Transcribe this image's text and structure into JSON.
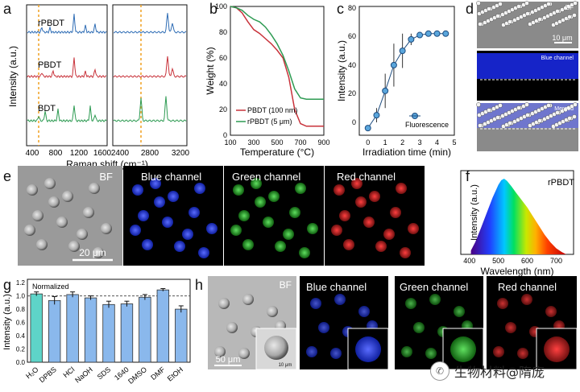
{
  "panel_letters": {
    "a": "a",
    "b": "b",
    "c": "c",
    "d": "d",
    "e": "e",
    "f": "f",
    "g": "g",
    "h": "h"
  },
  "panel_a": {
    "ylabel": "Intensity (a.u.)",
    "xlabel": "Raman shift (cm⁻¹)",
    "left_ticks": [
      "400",
      "800",
      "1200",
      "1600"
    ],
    "right_ticks": [
      "2400",
      "2800",
      "3200"
    ],
    "labels": [
      "rPBDT",
      "PBDT",
      "BDT"
    ],
    "colors": {
      "rPBDT": "#2f6db5",
      "PBDT": "#c8323a",
      "BDT": "#2e9b53",
      "marker": "#f0a020"
    }
  },
  "chart_data": [
    {
      "type": "line",
      "panel": "b",
      "ylabel": "Weight (%)",
      "xlabel": "Temperature (°C)",
      "xlim": [
        100,
        900
      ],
      "ylim": [
        0,
        100
      ],
      "x_ticks": [
        "100",
        "200",
        "300",
        "400",
        "500",
        "600",
        "700",
        "800",
        "900"
      ],
      "y_ticks": [
        "0",
        "20",
        "40",
        "60",
        "80",
        "100"
      ],
      "series": [
        {
          "name": "PBDT (100 nm)",
          "color": "#c8323a",
          "x": [
            100,
            150,
            200,
            250,
            300,
            350,
            400,
            450,
            500,
            550,
            600,
            650,
            700,
            750,
            800,
            850,
            900
          ],
          "y": [
            100,
            99,
            95,
            88,
            82,
            79,
            75,
            71,
            66,
            60,
            45,
            20,
            9,
            7,
            7,
            7,
            7
          ]
        },
        {
          "name": "rPBDT (5 μm)",
          "color": "#2e9b53",
          "x": [
            100,
            150,
            200,
            250,
            300,
            350,
            400,
            450,
            500,
            550,
            600,
            650,
            700,
            750,
            800,
            850,
            900
          ],
          "y": [
            100,
            99,
            97,
            93,
            90,
            88,
            84,
            78,
            71,
            62,
            50,
            36,
            29,
            28,
            28,
            28,
            28
          ]
        }
      ]
    },
    {
      "type": "scatter",
      "panel": "c",
      "ylabel": "Intensity (a.u.)",
      "xlabel": "Irradiation time (min)",
      "xlim": [
        -0.5,
        5
      ],
      "ylim": [
        -5,
        85
      ],
      "x_ticks": [
        "0",
        "1",
        "2",
        "3",
        "4",
        "5"
      ],
      "y_ticks": [
        "0",
        "20",
        "40",
        "60",
        "80"
      ],
      "series": [
        {
          "name": "Fluorescence",
          "color": "#5aa6dc",
          "x": [
            0,
            0.5,
            1,
            1.5,
            2,
            2.5,
            3,
            3.5,
            4,
            4.5
          ],
          "y": [
            0,
            9,
            26,
            44,
            54,
            62,
            65,
            66,
            66,
            66
          ],
          "err": [
            1,
            5,
            12,
            15,
            12,
            4,
            2,
            1,
            1,
            1
          ]
        }
      ]
    },
    {
      "type": "area",
      "panel": "f",
      "title": "rPBDT",
      "ylabel": "Intensity (a.u.)",
      "xlabel": "Wavelength (nm)",
      "xlim": [
        370,
        760
      ],
      "x_ticks": [
        "400",
        "500",
        "600",
        "700"
      ],
      "x": [
        405,
        420,
        440,
        460,
        480,
        500,
        510,
        520,
        530,
        545,
        560,
        580,
        600,
        620,
        640,
        660,
        680,
        700,
        720,
        735
      ],
      "y": [
        0.05,
        0.16,
        0.35,
        0.55,
        0.75,
        0.92,
        0.98,
        1.0,
        0.97,
        0.9,
        0.82,
        0.72,
        0.62,
        0.5,
        0.38,
        0.26,
        0.16,
        0.08,
        0.03,
        0.0
      ]
    },
    {
      "type": "bar",
      "panel": "g",
      "ylabel": "Intensity (a.u.)",
      "annotation": "Normalized",
      "ylim": [
        0,
        1.25
      ],
      "y_ticks": [
        "0.0",
        "0.2",
        "0.4",
        "0.6",
        "0.8",
        "1.0",
        "1.2"
      ],
      "categories": [
        "H₂O",
        "DPBS",
        "HCl",
        "NaOH",
        "SDS",
        "1640",
        "DMSO",
        "DMF",
        "EtOH"
      ],
      "values": [
        1.03,
        0.93,
        1.02,
        0.97,
        0.87,
        0.88,
        0.98,
        1.09,
        0.8
      ],
      "errors": [
        0.03,
        0.06,
        0.04,
        0.03,
        0.05,
        0.04,
        0.04,
        0.02,
        0.05
      ],
      "colors": {
        "first": "#5ed4c8",
        "rest": "#8ab8ec"
      }
    }
  ],
  "panel_d": {
    "labels": [
      "BF",
      "Blue channel",
      "Merged"
    ],
    "scale": "10 μm"
  },
  "panel_e": {
    "labels": [
      "BF",
      "Blue channel",
      "Green channel",
      "Red channel"
    ],
    "scale": "20 μm"
  },
  "panel_h": {
    "labels": [
      "BF",
      "Blue channel",
      "Green channel",
      "Red channel"
    ],
    "scale": "50 μm",
    "inset_scale": "10 μm"
  },
  "watermark": {
    "text": "生物材料@隋庞"
  }
}
